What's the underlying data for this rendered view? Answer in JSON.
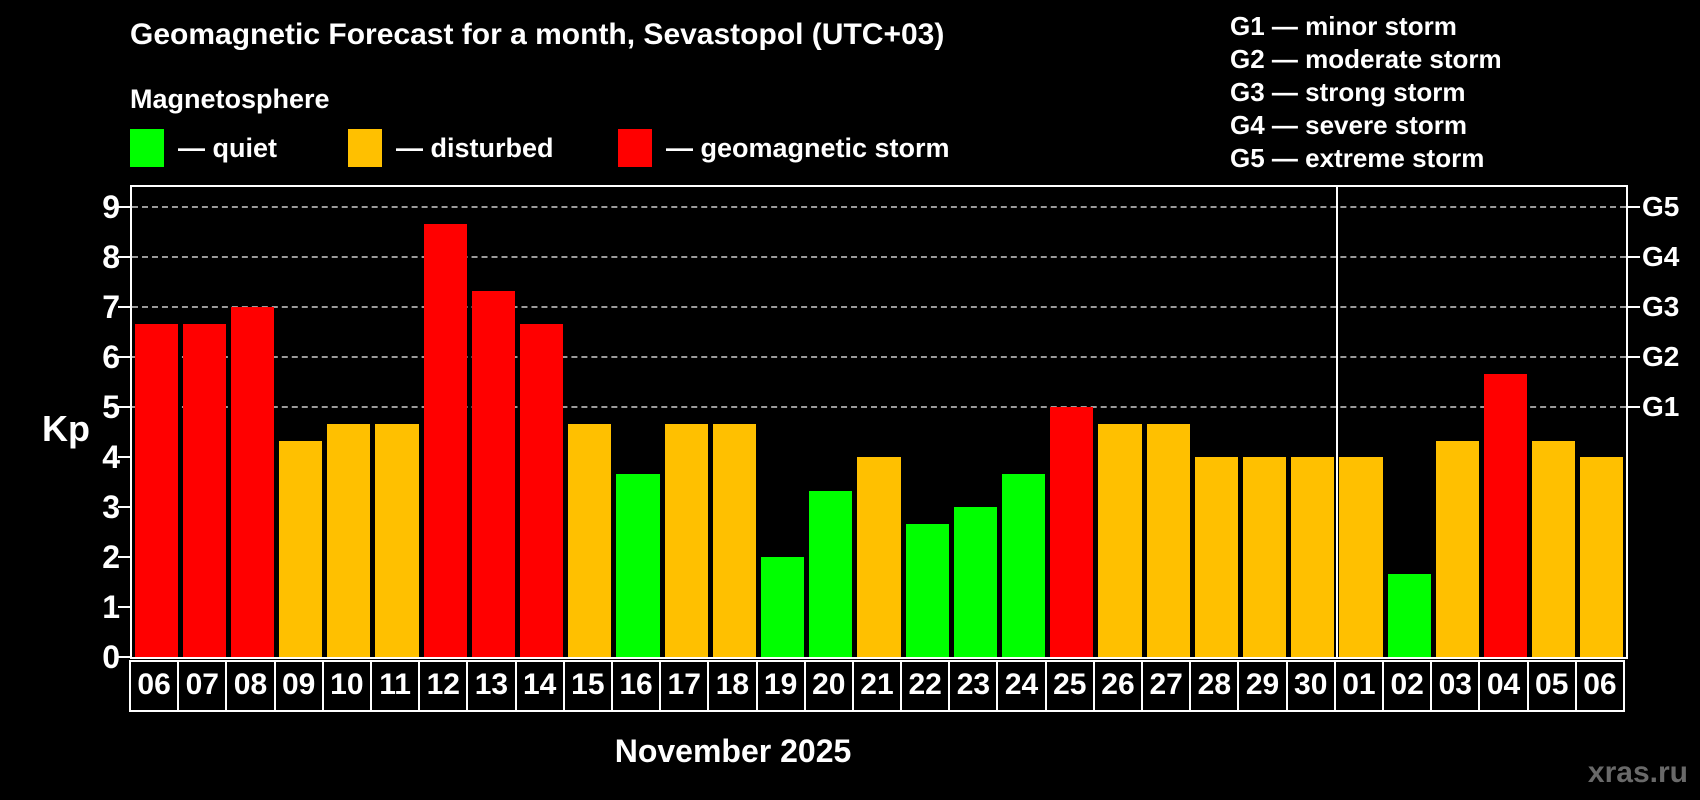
{
  "header": {
    "title": "Geomagnetic Forecast for a month, Sevastopol (UTC+03)",
    "subtitle": "Magnetosphere"
  },
  "legend": {
    "items": [
      {
        "status": "quiet",
        "label": "— quiet",
        "color": "#00ff00"
      },
      {
        "status": "disturbed",
        "label": "— disturbed",
        "color": "#ffc000"
      },
      {
        "status": "storm",
        "label": "— geomagnetic storm",
        "color": "#ff0000"
      }
    ]
  },
  "g_legend": {
    "lines": [
      "G1 — minor storm",
      "G2 — moderate storm",
      "G3 — strong storm",
      "G4 — severe storm",
      "G5 — extreme storm"
    ]
  },
  "chart_data": {
    "type": "bar",
    "title": "Geomagnetic Forecast for a month, Sevastopol (UTC+03)",
    "subtitle": "Magnetosphere",
    "ylabel": "Kp",
    "xlabel": "November 2025",
    "ylim": [
      0,
      9.4
    ],
    "yticks": [
      0,
      1,
      2,
      3,
      4,
      5,
      6,
      7,
      8,
      9
    ],
    "gridline_levels": [
      5,
      6,
      7,
      8,
      9
    ],
    "grid": "dashed, horizontal, at G-storm levels only",
    "legend_position": "top",
    "right_axis": [
      {
        "label": "G1",
        "kp": 5
      },
      {
        "label": "G2",
        "kp": 6
      },
      {
        "label": "G3",
        "kp": 7
      },
      {
        "label": "G4",
        "kp": 8
      },
      {
        "label": "G5",
        "kp": 9
      }
    ],
    "categories": [
      "06",
      "07",
      "08",
      "09",
      "10",
      "11",
      "12",
      "13",
      "14",
      "15",
      "16",
      "17",
      "18",
      "19",
      "20",
      "21",
      "22",
      "23",
      "24",
      "25",
      "26",
      "27",
      "28",
      "29",
      "30",
      "01",
      "02",
      "03",
      "04",
      "05",
      "06"
    ],
    "values": [
      6.67,
      6.67,
      7.0,
      4.33,
      4.67,
      4.67,
      8.67,
      7.33,
      6.67,
      4.67,
      3.67,
      4.67,
      4.67,
      2.0,
      3.33,
      4.0,
      2.67,
      3.0,
      3.67,
      5.0,
      4.67,
      4.67,
      4.0,
      4.0,
      4.0,
      4.0,
      1.67,
      4.33,
      5.67,
      4.33,
      4.0
    ],
    "statuses": [
      "storm",
      "storm",
      "storm",
      "disturbed",
      "disturbed",
      "disturbed",
      "storm",
      "storm",
      "storm",
      "disturbed",
      "quiet",
      "disturbed",
      "disturbed",
      "quiet",
      "quiet",
      "disturbed",
      "quiet",
      "quiet",
      "quiet",
      "storm",
      "disturbed",
      "disturbed",
      "disturbed",
      "disturbed",
      "disturbed",
      "disturbed",
      "quiet",
      "disturbed",
      "storm",
      "disturbed",
      "disturbed"
    ],
    "colors": {
      "quiet": "#00ff00",
      "disturbed": "#ffc000",
      "storm": "#ff0000"
    },
    "month_separator_after_index": 24
  },
  "footer": {
    "xaxis_title": "November 2025",
    "watermark": "xras.ru"
  }
}
